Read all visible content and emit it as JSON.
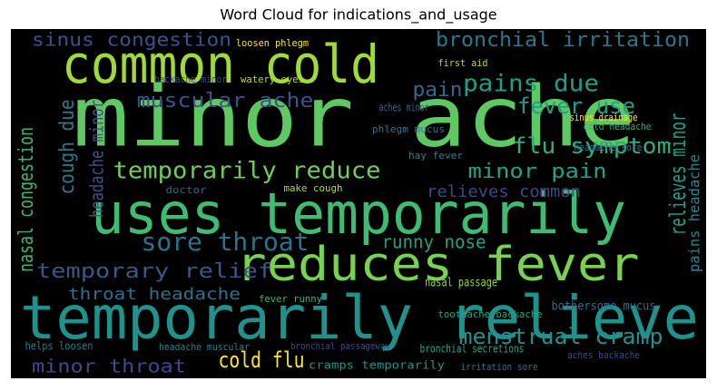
{
  "chart_data": {
    "type": "wordcloud",
    "title": "Word Cloud for indications_and_usage",
    "background": "#000000",
    "words": [
      {
        "text": "minor ache",
        "color": "#5ec962"
      },
      {
        "text": "common cold",
        "color": "#a0da39"
      },
      {
        "text": "uses temporarily",
        "color": "#3fbc73"
      },
      {
        "text": "temporarily relieve",
        "color": "#21918c"
      },
      {
        "text": "reduces fever",
        "color": "#7ad151"
      },
      {
        "text": "sinus congestion",
        "color": "#3b528b"
      },
      {
        "text": "bronchial irritation",
        "color": "#2a788e"
      },
      {
        "text": "pains due",
        "color": "#1f9e89"
      },
      {
        "text": "fever use",
        "color": "#1f9e89"
      },
      {
        "text": "flu symptom",
        "color": "#2ab07f"
      },
      {
        "text": "relieves minor",
        "color": "#1f9e89"
      },
      {
        "text": "nasal congestion",
        "color": "#35b779"
      },
      {
        "text": "cough due",
        "color": "#2a788e"
      },
      {
        "text": "headache minor",
        "color": "#3b528b"
      },
      {
        "text": "muscular ache",
        "color": "#3b528b"
      },
      {
        "text": "pain",
        "color": "#31688e"
      },
      {
        "text": "temporarily reduce",
        "color": "#6ece58"
      },
      {
        "text": "minor pain",
        "color": "#20a386"
      },
      {
        "text": "sore throat",
        "color": "#2c728e"
      },
      {
        "text": "runny nose",
        "color": "#20a386"
      },
      {
        "text": "temporary relief",
        "color": "#38588c"
      },
      {
        "text": "throat headache",
        "color": "#2c728e"
      },
      {
        "text": "relieves common",
        "color": "#3e4989"
      },
      {
        "text": "menstrual cramp",
        "color": "#21918c"
      },
      {
        "text": "cold flu",
        "color": "#fde725"
      },
      {
        "text": "minor throat",
        "color": "#3e4989"
      },
      {
        "text": "pains headache",
        "color": "#23898e"
      },
      {
        "text": "cramps temporarily",
        "color": "#21918c"
      },
      {
        "text": "hay fever",
        "color": "#25858e"
      },
      {
        "text": "phlegm mucus",
        "color": "#2a788e"
      },
      {
        "text": "sinus drainage",
        "color": "#fde725"
      },
      {
        "text": "loosen phlegm",
        "color": "#fde725"
      },
      {
        "text": "watery eyes",
        "color": "#b5de2b"
      },
      {
        "text": "backache minor",
        "color": "#3b528b"
      },
      {
        "text": "aches minor",
        "color": "#31688e"
      },
      {
        "text": "nasal passage",
        "color": "#90d743"
      },
      {
        "text": "bothersome mucus",
        "color": "#2c728e"
      },
      {
        "text": "toothache backache",
        "color": "#22a884"
      },
      {
        "text": "helps loosen",
        "color": "#2a788e"
      },
      {
        "text": "headache muscular",
        "color": "#26828e"
      },
      {
        "text": "bronchial passageway",
        "color": "#3e4989"
      },
      {
        "text": "bronchial secretions",
        "color": "#22a884"
      },
      {
        "text": "irritation sore",
        "color": "#2c728e"
      },
      {
        "text": "aches backache",
        "color": "#3e4989"
      },
      {
        "text": "headache sore",
        "color": "#2a788e"
      },
      {
        "text": "cold headache",
        "color": "#2ab07f"
      },
      {
        "text": "first aid",
        "color": "#b5de2b"
      },
      {
        "text": "fever runny",
        "color": "#35b779"
      },
      {
        "text": "make cough",
        "color": "#b5de2b"
      },
      {
        "text": "doctor",
        "color": "#31688e"
      }
    ]
  }
}
